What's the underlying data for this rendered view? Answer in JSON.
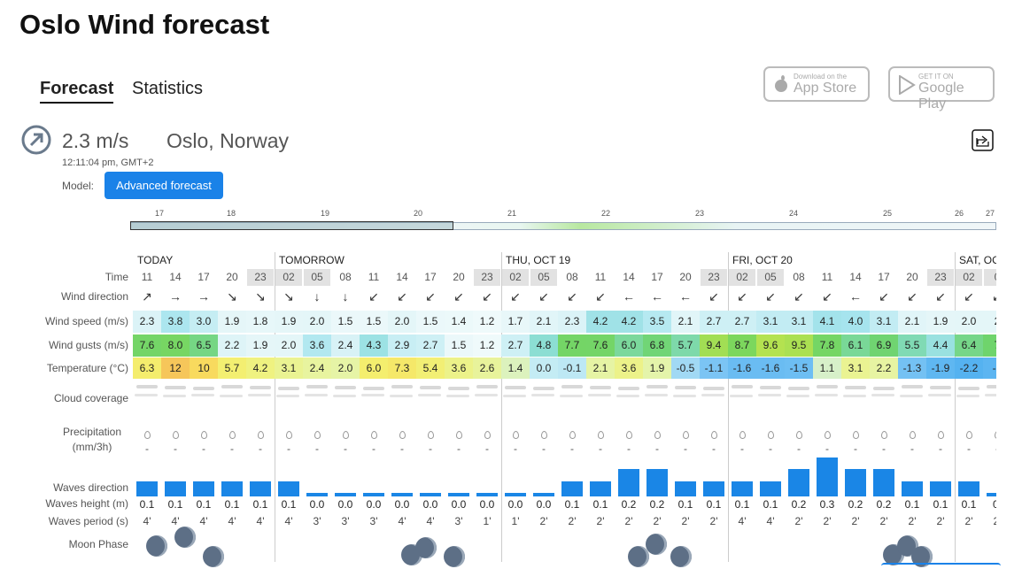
{
  "header": {
    "title": "Oslo Wind forecast",
    "tabs": [
      "Forecast",
      "Statistics"
    ],
    "app_store": {
      "small": "Download on the",
      "big": "App Store"
    },
    "google_play": {
      "small": "GET IT ON",
      "big": "Google Play"
    }
  },
  "current": {
    "speed": "2.3 m/s",
    "location": "Oslo, Norway",
    "time": "12:11:04 pm, GMT+2",
    "model_label": "Model:",
    "model": "Advanced forecast"
  },
  "timeline": [
    "17",
    "18",
    "19",
    "20",
    "21",
    "22",
    "23",
    "24",
    "25",
    "26",
    "27"
  ],
  "row_labels": {
    "time": "Time",
    "wind_direction": "Wind direction",
    "wind_speed": "Wind speed (m/s)",
    "wind_gusts": "Wind gusts (m/s)",
    "temperature": "Temperature (°C)",
    "cloud_coverage": "Cloud coverage",
    "precipitation": "Precipitation (mm/3h)",
    "waves_direction": "Waves direction",
    "waves_height": "Waves height (m)",
    "waves_period": "Waves period (s)",
    "moon_phase": "Moon Phase"
  },
  "days": [
    {
      "label": "TODAY",
      "hours": [
        {
          "time": "11",
          "dir": "↗",
          "speed": "2.3",
          "gust": "7.6",
          "temp": "6.3",
          "precip": "-",
          "wave_h": "0.1",
          "wave_p": "4'"
        },
        {
          "time": "14",
          "dir": "→",
          "speed": "3.8",
          "gust": "8.0",
          "temp": "12",
          "precip": "-",
          "wave_h": "0.1",
          "wave_p": "4'"
        },
        {
          "time": "17",
          "dir": "→",
          "speed": "3.0",
          "gust": "6.5",
          "temp": "10",
          "precip": "-",
          "wave_h": "0.1",
          "wave_p": "4'"
        },
        {
          "time": "20",
          "dir": "↘",
          "speed": "1.9",
          "gust": "2.2",
          "temp": "5.7",
          "precip": "-",
          "wave_h": "0.1",
          "wave_p": "4'"
        },
        {
          "time": "23",
          "dir": "↘",
          "speed": "1.8",
          "gust": "1.9",
          "temp": "4.2",
          "precip": "-",
          "wave_h": "0.1",
          "wave_p": "4'"
        }
      ]
    },
    {
      "label": "TOMORROW",
      "hours": [
        {
          "time": "02",
          "dir": "↘",
          "speed": "1.9",
          "gust": "2.0",
          "temp": "3.1",
          "precip": "-",
          "wave_h": "0.1",
          "wave_p": "4'"
        },
        {
          "time": "05",
          "dir": "↓",
          "speed": "2.0",
          "gust": "3.6",
          "temp": "2.4",
          "precip": "-",
          "wave_h": "0.0",
          "wave_p": "3'"
        },
        {
          "time": "08",
          "dir": "↓",
          "speed": "1.5",
          "gust": "2.4",
          "temp": "2.0",
          "precip": "-",
          "wave_h": "0.0",
          "wave_p": "3'"
        },
        {
          "time": "11",
          "dir": "↙",
          "speed": "1.5",
          "gust": "4.3",
          "temp": "6.0",
          "precip": "-",
          "wave_h": "0.0",
          "wave_p": "3'"
        },
        {
          "time": "14",
          "dir": "↙",
          "speed": "2.0",
          "gust": "2.9",
          "temp": "7.3",
          "precip": "-",
          "wave_h": "0.0",
          "wave_p": "4'"
        },
        {
          "time": "17",
          "dir": "↙",
          "speed": "1.5",
          "gust": "2.7",
          "temp": "5.4",
          "precip": "-",
          "wave_h": "0.0",
          "wave_p": "4'"
        },
        {
          "time": "20",
          "dir": "↙",
          "speed": "1.4",
          "gust": "1.5",
          "temp": "3.6",
          "precip": "-",
          "wave_h": "0.0",
          "wave_p": "3'"
        },
        {
          "time": "23",
          "dir": "↙",
          "speed": "1.2",
          "gust": "1.2",
          "temp": "2.6",
          "precip": "-",
          "wave_h": "0.0",
          "wave_p": "1'"
        }
      ]
    },
    {
      "label": "THU, OCT 19",
      "hours": [
        {
          "time": "02",
          "dir": "↙",
          "speed": "1.7",
          "gust": "2.7",
          "temp": "1.4",
          "precip": "-",
          "wave_h": "0.0",
          "wave_p": "1'"
        },
        {
          "time": "05",
          "dir": "↙",
          "speed": "2.1",
          "gust": "4.8",
          "temp": "0.0",
          "precip": "-",
          "wave_h": "0.0",
          "wave_p": "2'"
        },
        {
          "time": "08",
          "dir": "↙",
          "speed": "2.3",
          "gust": "7.7",
          "temp": "-0.1",
          "precip": "-",
          "wave_h": "0.1",
          "wave_p": "2'"
        },
        {
          "time": "11",
          "dir": "↙",
          "speed": "4.2",
          "gust": "7.6",
          "temp": "2.1",
          "precip": "-",
          "wave_h": "0.1",
          "wave_p": "2'"
        },
        {
          "time": "14",
          "dir": "←",
          "speed": "4.2",
          "gust": "6.0",
          "temp": "3.6",
          "precip": "-",
          "wave_h": "0.2",
          "wave_p": "2'"
        },
        {
          "time": "17",
          "dir": "←",
          "speed": "3.5",
          "gust": "6.8",
          "temp": "1.9",
          "precip": "-",
          "wave_h": "0.2",
          "wave_p": "2'"
        },
        {
          "time": "20",
          "dir": "←",
          "speed": "2.1",
          "gust": "5.7",
          "temp": "-0.5",
          "precip": "-",
          "wave_h": "0.1",
          "wave_p": "2'"
        },
        {
          "time": "23",
          "dir": "↙",
          "speed": "2.7",
          "gust": "9.4",
          "temp": "-1.1",
          "precip": "-",
          "wave_h": "0.1",
          "wave_p": "2'"
        }
      ]
    },
    {
      "label": "FRI, OCT 20",
      "hours": [
        {
          "time": "02",
          "dir": "↙",
          "speed": "2.7",
          "gust": "8.7",
          "temp": "-1.6",
          "precip": "-",
          "wave_h": "0.1",
          "wave_p": "4'"
        },
        {
          "time": "05",
          "dir": "↙",
          "speed": "3.1",
          "gust": "9.6",
          "temp": "-1.6",
          "precip": "-",
          "wave_h": "0.1",
          "wave_p": "4'"
        },
        {
          "time": "08",
          "dir": "↙",
          "speed": "3.1",
          "gust": "9.5",
          "temp": "-1.5",
          "precip": "-",
          "wave_h": "0.2",
          "wave_p": "2'"
        },
        {
          "time": "11",
          "dir": "↙",
          "speed": "4.1",
          "gust": "7.8",
          "temp": "1.1",
          "precip": "-",
          "wave_h": "0.3",
          "wave_p": "2'"
        },
        {
          "time": "14",
          "dir": "←",
          "speed": "4.0",
          "gust": "6.1",
          "temp": "3.1",
          "precip": "-",
          "wave_h": "0.2",
          "wave_p": "2'"
        },
        {
          "time": "17",
          "dir": "↙",
          "speed": "3.1",
          "gust": "6.9",
          "temp": "2.2",
          "precip": "-",
          "wave_h": "0.2",
          "wave_p": "2'"
        },
        {
          "time": "20",
          "dir": "↙",
          "speed": "2.1",
          "gust": "5.5",
          "temp": "-1.3",
          "precip": "-",
          "wave_h": "0.1",
          "wave_p": "2'"
        },
        {
          "time": "23",
          "dir": "↙",
          "speed": "1.9",
          "gust": "4.4",
          "temp": "-1.9",
          "precip": "-",
          "wave_h": "0.1",
          "wave_p": "2'"
        }
      ]
    },
    {
      "label": "SAT, OC",
      "hours": [
        {
          "time": "02",
          "dir": "↙",
          "speed": "2.0",
          "gust": "6.4",
          "temp": "-2.2",
          "precip": "-",
          "wave_h": "0.1",
          "wave_p": "2'"
        },
        {
          "time": "0",
          "dir": "↙",
          "speed": "2",
          "gust": "7",
          "temp": "-2",
          "precip": "-",
          "wave_h": "0.",
          "wave_p": "2'"
        }
      ]
    }
  ]
}
